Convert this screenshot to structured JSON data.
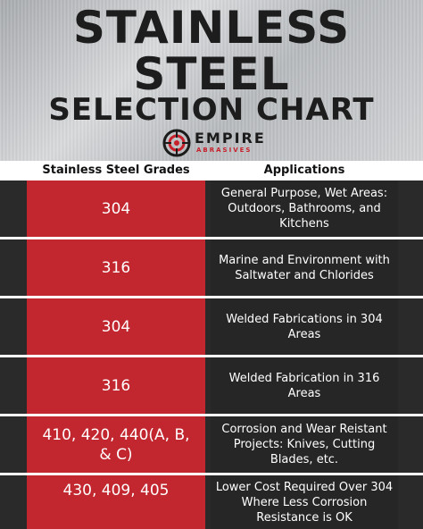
{
  "header": {
    "title_line1": "STAINLESS",
    "title_line2": "STEEL",
    "title_line3": "SELECTION CHART"
  },
  "logo": {
    "name": "EMPIRE",
    "sub": "ABRASIVES",
    "icon": "empire-abrasives-logo-icon"
  },
  "table": {
    "columns": [
      "Stainless Steel Grades",
      "Applications"
    ],
    "rows": [
      {
        "grade": "304",
        "application": "General Purpose, Wet Areas: Outdoors, Bathrooms, and Kitchens"
      },
      {
        "grade": "316",
        "application": "Marine and Environment with Saltwater and Chlorides"
      },
      {
        "grade": "304",
        "application": "Welded Fabrications in 304 Areas"
      },
      {
        "grade": "316",
        "application": "Welded Fabrication in 316 Areas"
      },
      {
        "grade": "410, 420, 440(A, B, & C)",
        "application": "Corrosion and Wear Reistant Projects: Knives, Cutting Blades, etc."
      },
      {
        "grade": "430, 409, 405",
        "application": "Lower Cost Required Over 304 Where Less Corrosion Resistance is OK"
      }
    ]
  },
  "colors": {
    "grade_cell": "#c2262e",
    "application_cell": "#262626",
    "title_text": "#1d1d1d",
    "logo_accent": "#c8202a"
  }
}
